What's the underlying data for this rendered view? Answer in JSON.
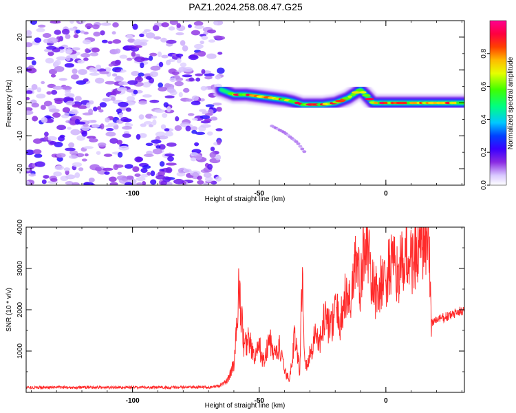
{
  "figure": {
    "title": "PAZ1.2024.258.08.47.G25"
  },
  "chart_data": [
    {
      "type": "heatmap",
      "title": "PAZ1.2024.258.08.47.G25",
      "xlabel": "Height of straight line (km)",
      "ylabel": "Frequency (Hz)",
      "xlim": [
        -142,
        31
      ],
      "ylim": [
        -25,
        25
      ],
      "xticks": [
        -100,
        -50,
        0
      ],
      "yticks": [
        -20,
        -10,
        0,
        10,
        20
      ],
      "grid": false,
      "colorbar": {
        "label": "Normalized spectral amplitude",
        "range": [
          0,
          1
        ],
        "ticks": [
          "0.0",
          "0.2",
          "0.4",
          "0.6",
          "0.8"
        ],
        "colormap": "rainbow (white-purple-blue-cyan-green-yellow-orange-red-magenta)"
      },
      "noise_region": {
        "x_range": [
          -142,
          -65
        ],
        "amplitude_range": [
          0.05,
          0.25
        ]
      },
      "ridge": {
        "x": [
          -65,
          -60,
          -55,
          -50,
          -45,
          -40,
          -37,
          -33,
          -30,
          -25,
          -20,
          -15,
          -12,
          -10,
          -8,
          -5,
          0,
          5,
          10,
          20,
          31
        ],
        "y": [
          4,
          2.5,
          2.5,
          2,
          1.5,
          1,
          0.5,
          -0.5,
          -0.5,
          -0.5,
          0,
          1.5,
          3,
          4,
          2.5,
          0,
          0,
          0,
          0,
          0,
          0
        ]
      },
      "spur": {
        "x": [
          -45,
          -40,
          -35,
          -32
        ],
        "y": [
          -7,
          -9,
          -12,
          -15
        ]
      }
    },
    {
      "type": "line",
      "xlabel": "Height of straight line (km)",
      "ylabel": "SNR (10 * v/v)",
      "xlim": [
        -142,
        31
      ],
      "ylim": [
        0,
        4000
      ],
      "xticks": [
        -100,
        -50,
        0
      ],
      "yticks": [
        1000,
        2000,
        3000,
        4000
      ],
      "grid": false,
      "color": "#ff2a2a",
      "series": [
        {
          "x": [
            -142,
            -120,
            -100,
            -80,
            -68,
            -64,
            -62,
            -60,
            -59,
            -58,
            -56,
            -54,
            -52,
            -50,
            -48,
            -46,
            -44,
            -42,
            -40,
            -38,
            -36,
            -34,
            -33,
            -32,
            -30,
            -28,
            -26,
            -24,
            -22,
            -20,
            -18,
            -16,
            -14,
            -12,
            -10,
            -8,
            -6,
            -4,
            -2,
            0,
            2,
            4,
            6,
            8,
            10,
            12,
            14,
            16,
            17,
            18,
            20,
            25,
            31
          ],
          "y": [
            120,
            120,
            120,
            120,
            130,
            200,
            350,
            700,
            1400,
            2600,
            1100,
            1300,
            800,
            1100,
            700,
            1300,
            900,
            1100,
            500,
            300,
            1400,
            500,
            3050,
            600,
            900,
            1400,
            1200,
            1900,
            1500,
            2000,
            1700,
            2300,
            2200,
            3300,
            2500,
            4000,
            2700,
            2400,
            2600,
            2700,
            3100,
            2900,
            3000,
            3300,
            3200,
            3400,
            3500,
            3650,
            3500,
            1700,
            1750,
            1850,
            2000
          ]
        }
      ]
    }
  ]
}
